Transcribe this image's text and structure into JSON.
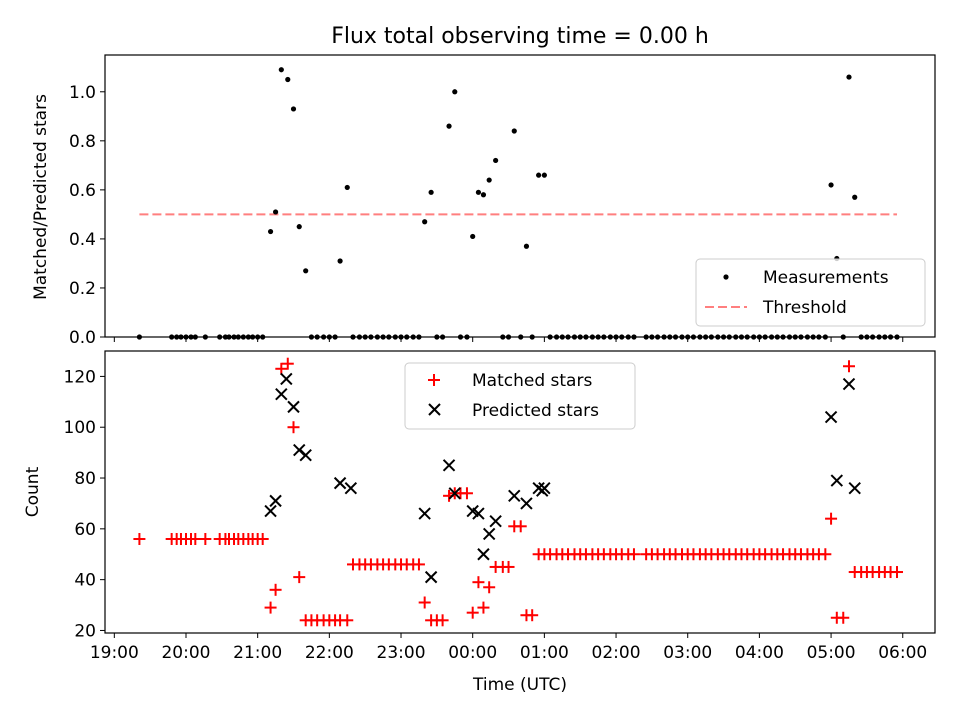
{
  "chart_data": [
    {
      "type": "scatter",
      "title": "Flux total observing time = 0.00 h",
      "ylabel": "Matched/Predicted stars",
      "xlabel": "",
      "xlim": [
        18.87,
        30.45
      ],
      "ylim": [
        0.0,
        1.15
      ],
      "yticks": [
        0.0,
        0.2,
        0.4,
        0.6,
        0.8,
        1.0
      ],
      "ytick_labels": [
        "0.0",
        "0.2",
        "0.4",
        "0.6",
        "0.8",
        "1.0"
      ],
      "legend_position": "lower-right",
      "legend": [
        "Measurements",
        "Threshold"
      ],
      "series": [
        {
          "name": "Measurements",
          "color": "#000000",
          "marker": "dot",
          "x": [
            19.35,
            19.8,
            19.87,
            19.93,
            20.0,
            20.07,
            20.13,
            20.27,
            20.47,
            20.55,
            20.6,
            20.67,
            20.73,
            20.8,
            20.87,
            20.93,
            21.0,
            21.07,
            21.18,
            21.25,
            21.33,
            21.42,
            21.5,
            21.58,
            21.67,
            21.75,
            21.83,
            21.92,
            22.0,
            22.08,
            22.15,
            22.25,
            22.33,
            22.42,
            22.5,
            22.58,
            22.67,
            22.75,
            22.83,
            22.92,
            23.0,
            23.08,
            23.17,
            23.25,
            23.33,
            23.42,
            23.5,
            23.58,
            23.67,
            23.75,
            23.83,
            23.92,
            24.0,
            24.08,
            24.15,
            24.23,
            24.32,
            24.42,
            24.5,
            24.58,
            24.67,
            24.75,
            24.83,
            24.92,
            25.0,
            25.08,
            25.17,
            25.25,
            25.33,
            25.42,
            25.5,
            25.58,
            25.67,
            25.75,
            25.83,
            25.92,
            26.0,
            26.08,
            26.17,
            26.25,
            26.42,
            26.5,
            26.58,
            26.67,
            26.75,
            26.83,
            26.92,
            27.0,
            27.08,
            27.17,
            27.25,
            27.33,
            27.42,
            27.5,
            27.58,
            27.67,
            27.75,
            27.83,
            27.92,
            28.0,
            28.08,
            28.17,
            28.25,
            28.33,
            28.42,
            28.5,
            28.58,
            28.67,
            28.75,
            28.83,
            28.92,
            29.0,
            29.08,
            29.17,
            29.25,
            29.33,
            29.42,
            29.5,
            29.58,
            29.67,
            29.75,
            29.83,
            29.92
          ],
          "y": [
            0.0,
            0.0,
            0.0,
            0.0,
            0.0,
            0.0,
            0.0,
            0.0,
            0.0,
            0.0,
            0.0,
            0.0,
            0.0,
            0.0,
            0.0,
            0.0,
            0.0,
            0.0,
            0.43,
            0.51,
            1.09,
            1.05,
            0.93,
            0.45,
            0.27,
            0.0,
            0.0,
            0.0,
            0.0,
            0.0,
            0.31,
            0.61,
            0.0,
            0.0,
            0.0,
            0.0,
            0.0,
            0.0,
            0.0,
            0.0,
            0.0,
            0.0,
            0.0,
            0.0,
            0.47,
            0.59,
            0.0,
            0.0,
            0.86,
            1.0,
            0.0,
            0.0,
            0.41,
            0.59,
            0.58,
            0.64,
            0.72,
            0.0,
            0.0,
            0.84,
            0.0,
            0.37,
            0.0,
            0.66,
            0.66,
            0.0,
            0.0,
            0.0,
            0.0,
            0.0,
            0.0,
            0.0,
            0.0,
            0.0,
            0.0,
            0.0,
            0.0,
            0.0,
            0.0,
            0.0,
            0.0,
            0.0,
            0.0,
            0.0,
            0.0,
            0.0,
            0.0,
            0.0,
            0.0,
            0.0,
            0.0,
            0.0,
            0.0,
            0.0,
            0.0,
            0.0,
            0.0,
            0.0,
            0.0,
            0.0,
            0.0,
            0.0,
            0.0,
            0.0,
            0.0,
            0.0,
            0.0,
            0.0,
            0.0,
            0.0,
            0.0,
            0.62,
            0.32,
            0.0,
            1.06,
            0.57,
            0.0,
            0.0,
            0.0,
            0.0,
            0.0,
            0.0,
            0.0
          ]
        },
        {
          "name": "Threshold",
          "color": "#ff7f7f",
          "style": "dashed",
          "x": [
            19.35,
            29.92
          ],
          "y": [
            0.5,
            0.5
          ]
        }
      ]
    },
    {
      "type": "scatter",
      "xlabel": "Time (UTC)",
      "ylabel": "Count",
      "xlim": [
        18.87,
        30.45
      ],
      "ylim": [
        19,
        130
      ],
      "yticks": [
        20,
        40,
        60,
        80,
        100,
        120
      ],
      "ytick_labels": [
        "20",
        "40",
        "60",
        "80",
        "100",
        "120"
      ],
      "xticks": [
        19,
        20,
        21,
        22,
        23,
        24,
        25,
        26,
        27,
        28,
        29,
        30
      ],
      "xtick_labels": [
        "19:00",
        "20:00",
        "21:00",
        "22:00",
        "23:00",
        "00:00",
        "01:00",
        "02:00",
        "03:00",
        "04:00",
        "05:00",
        "06:00"
      ],
      "legend_position": "top-center",
      "legend": [
        "Matched stars",
        "Predicted stars"
      ],
      "series": [
        {
          "name": "Matched stars",
          "color": "#ff0000",
          "marker": "plus",
          "x": [
            19.35,
            19.8,
            19.87,
            19.93,
            20.0,
            20.07,
            20.13,
            20.27,
            20.47,
            20.55,
            20.6,
            20.67,
            20.73,
            20.8,
            20.87,
            20.93,
            21.0,
            21.07,
            21.18,
            21.25,
            21.33,
            21.42,
            21.5,
            21.58,
            21.67,
            21.75,
            21.83,
            21.92,
            22.0,
            22.08,
            22.15,
            22.25,
            22.33,
            22.42,
            22.5,
            22.58,
            22.67,
            22.75,
            22.83,
            22.92,
            23.0,
            23.08,
            23.17,
            23.25,
            23.33,
            23.42,
            23.5,
            23.58,
            23.67,
            23.75,
            23.83,
            23.92,
            24.0,
            24.08,
            24.15,
            24.23,
            24.32,
            24.42,
            24.5,
            24.58,
            24.67,
            24.75,
            24.83,
            24.92,
            25.0,
            25.08,
            25.17,
            25.25,
            25.33,
            25.42,
            25.5,
            25.58,
            25.67,
            25.75,
            25.83,
            25.92,
            26.0,
            26.08,
            26.17,
            26.25,
            26.42,
            26.5,
            26.58,
            26.67,
            26.75,
            26.83,
            26.92,
            27.0,
            27.08,
            27.17,
            27.25,
            27.33,
            27.42,
            27.5,
            27.58,
            27.67,
            27.75,
            27.83,
            27.92,
            28.0,
            28.08,
            28.17,
            28.25,
            28.33,
            28.42,
            28.5,
            28.58,
            28.67,
            28.75,
            28.83,
            28.92,
            29.0,
            29.08,
            29.17,
            29.25,
            29.33,
            29.42,
            29.5,
            29.58,
            29.67,
            29.75,
            29.83,
            29.92
          ],
          "y": [
            56,
            56,
            56,
            56,
            56,
            56,
            56,
            56,
            56,
            56,
            56,
            56,
            56,
            56,
            56,
            56,
            56,
            56,
            29,
            36,
            123,
            125,
            100,
            41,
            24,
            24,
            24,
            24,
            24,
            24,
            24,
            24,
            46,
            46,
            46,
            46,
            46,
            46,
            46,
            46,
            46,
            46,
            46,
            46,
            31,
            24,
            24,
            24,
            73,
            74,
            74,
            74,
            27,
            39,
            29,
            37,
            45,
            45,
            45,
            61,
            61,
            26,
            26,
            50,
            50,
            50,
            50,
            50,
            50,
            50,
            50,
            50,
            50,
            50,
            50,
            50,
            50,
            50,
            50,
            50,
            50,
            50,
            50,
            50,
            50,
            50,
            50,
            50,
            50,
            50,
            50,
            50,
            50,
            50,
            50,
            50,
            50,
            50,
            50,
            50,
            50,
            50,
            50,
            50,
            50,
            50,
            50,
            50,
            50,
            50,
            50,
            64,
            25,
            25,
            124,
            43,
            43,
            43,
            43,
            43,
            43,
            43,
            43
          ]
        },
        {
          "name": "Predicted stars",
          "color": "#000000",
          "marker": "x",
          "x": [
            21.18,
            21.25,
            21.33,
            21.4,
            21.5,
            21.58,
            21.67,
            22.15,
            22.3,
            23.33,
            23.42,
            23.67,
            23.75,
            24.0,
            24.08,
            24.15,
            24.23,
            24.32,
            24.58,
            24.75,
            24.92,
            25.0,
            24.97,
            29.0,
            29.08,
            29.25,
            29.33
          ],
          "y": [
            67,
            71,
            113,
            119,
            108,
            91,
            89,
            78,
            76,
            66,
            41,
            85,
            74,
            67,
            66,
            50,
            58,
            63,
            73,
            70,
            76,
            76,
            75,
            104,
            79,
            117,
            76
          ]
        }
      ]
    }
  ]
}
